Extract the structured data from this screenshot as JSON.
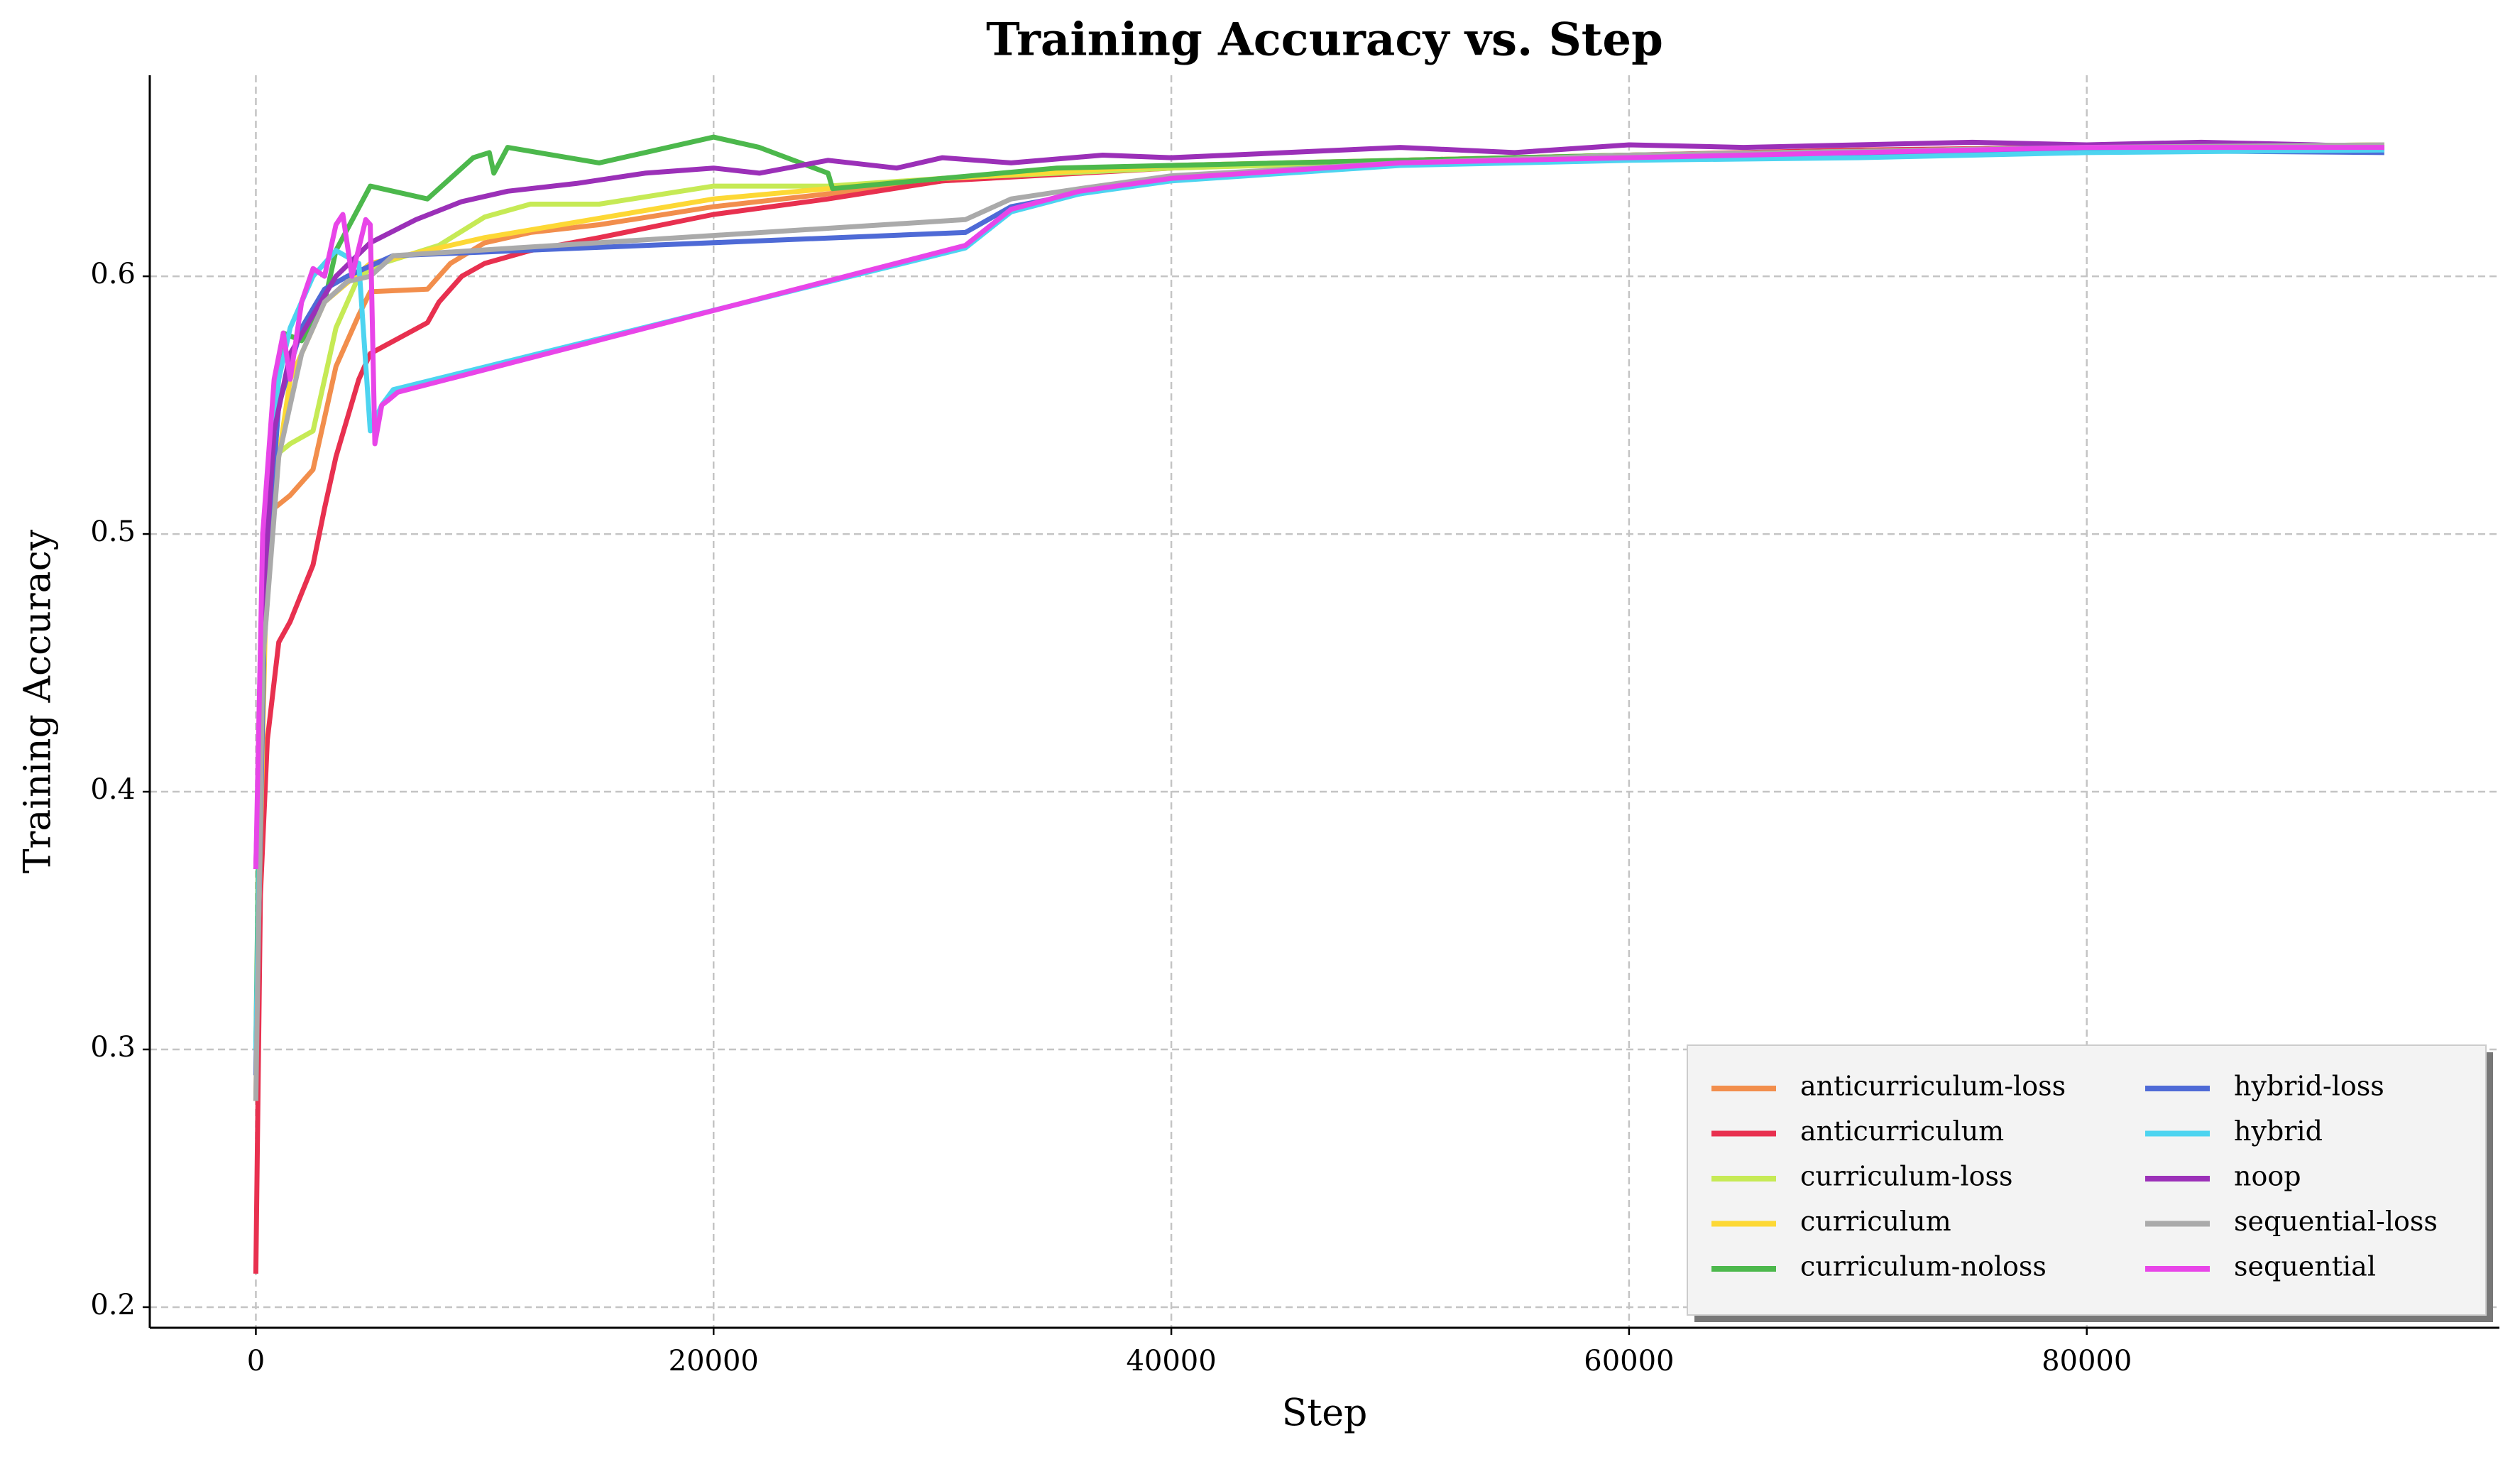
{
  "chart_data": {
    "type": "line",
    "title": "Training Accuracy vs. Step",
    "x_label": "Step",
    "y_label": "Training Accuracy",
    "xlim": [
      -4635,
      98030
    ],
    "ylim": [
      0.192,
      0.678
    ],
    "xticks": [
      0,
      20000,
      40000,
      60000,
      80000
    ],
    "yticks": [
      0.2,
      0.3,
      0.4,
      0.5,
      0.6
    ],
    "grid": true,
    "legend_loc": "lower right",
    "series": [
      {
        "name": "anticurriculum-loss",
        "color": "#f28e4c",
        "x": [
          0,
          300,
          800,
          1500,
          2500,
          3500,
          4500,
          5000,
          7500,
          8500,
          10000,
          12000,
          15000,
          20000,
          25000,
          30000,
          35000,
          40000,
          50000,
          60000,
          70000,
          80000,
          93000
        ],
        "values": [
          0.28,
          0.45,
          0.51,
          0.515,
          0.525,
          0.565,
          0.585,
          0.594,
          0.595,
          0.605,
          0.613,
          0.617,
          0.62,
          0.627,
          0.632,
          0.637,
          0.64,
          0.643,
          0.645,
          0.647,
          0.648,
          0.65,
          0.65
        ]
      },
      {
        "name": "anticurriculum",
        "color": "#e8304f",
        "x": [
          0,
          200,
          500,
          1000,
          1500,
          2500,
          3000,
          3500,
          4500,
          5000,
          7500,
          8000,
          9000,
          10000,
          12000,
          15000,
          20000,
          25000,
          30000,
          40000,
          50000,
          60000,
          70000,
          80000,
          93000
        ],
        "values": [
          0.213,
          0.36,
          0.42,
          0.458,
          0.466,
          0.488,
          0.51,
          0.53,
          0.56,
          0.57,
          0.582,
          0.59,
          0.6,
          0.605,
          0.61,
          0.615,
          0.624,
          0.63,
          0.637,
          0.642,
          0.645,
          0.647,
          0.649,
          0.65,
          0.65
        ]
      },
      {
        "name": "curriculum-loss",
        "color": "#c6ea55",
        "x": [
          0,
          300,
          800,
          1500,
          2500,
          3000,
          3500,
          4500,
          5500,
          8000,
          10000,
          12000,
          15000,
          20000,
          25000,
          30000,
          40000,
          60000,
          80000,
          93000
        ],
        "values": [
          0.29,
          0.46,
          0.53,
          0.535,
          0.54,
          0.56,
          0.58,
          0.6,
          0.605,
          0.612,
          0.623,
          0.628,
          0.628,
          0.635,
          0.635,
          0.638,
          0.642,
          0.647,
          0.65,
          0.651
        ]
      },
      {
        "name": "curriculum",
        "color": "#fdd835",
        "x": [
          0,
          500,
          1500,
          3000,
          5000,
          10000,
          20000,
          30000,
          40000,
          60000,
          80000,
          93000
        ],
        "values": [
          0.3,
          0.5,
          0.56,
          0.59,
          0.605,
          0.615,
          0.63,
          0.638,
          0.643,
          0.647,
          0.65,
          0.651
        ]
      },
      {
        "name": "curriculum-noloss",
        "color": "#4cb84c",
        "x": [
          0,
          300,
          1200,
          2000,
          3000,
          3500,
          5000,
          7500,
          9500,
          10200,
          10400,
          11000,
          15000,
          17000,
          20000,
          22000,
          25000,
          25200,
          30000,
          35000,
          40000,
          50000,
          60000,
          80000,
          93000
        ],
        "values": [
          0.3,
          0.5,
          0.578,
          0.575,
          0.59,
          0.61,
          0.635,
          0.63,
          0.646,
          0.648,
          0.64,
          0.65,
          0.644,
          0.648,
          0.654,
          0.65,
          0.64,
          0.634,
          0.638,
          0.642,
          0.643,
          0.645,
          0.647,
          0.65,
          0.65
        ]
      },
      {
        "name": "hybrid-loss",
        "color": "#4e6ad6",
        "x": [
          0,
          400,
          1000,
          2000,
          3000,
          4000,
          6000,
          31000,
          33000,
          36000,
          40000,
          50000,
          60000,
          80000,
          93000
        ],
        "values": [
          0.29,
          0.48,
          0.55,
          0.58,
          0.595,
          0.6,
          0.608,
          0.617,
          0.627,
          0.632,
          0.638,
          0.644,
          0.646,
          0.649,
          0.648
        ]
      },
      {
        "name": "hybrid",
        "color": "#4dd4f0",
        "x": [
          0,
          400,
          1000,
          1500,
          2500,
          3500,
          4500,
          5000,
          5500,
          6000,
          31000,
          33000,
          36000,
          40000,
          50000,
          60000,
          70000,
          80000,
          93000
        ],
        "values": [
          0.3,
          0.5,
          0.56,
          0.58,
          0.6,
          0.61,
          0.605,
          0.54,
          0.55,
          0.556,
          0.611,
          0.625,
          0.632,
          0.637,
          0.643,
          0.645,
          0.646,
          0.648,
          0.649
        ]
      },
      {
        "name": "noop",
        "color": "#9b30b8",
        "x": [
          0,
          300,
          800,
          1500,
          2500,
          3500,
          5000,
          7000,
          9000,
          11000,
          14000,
          17000,
          20000,
          22000,
          25000,
          28000,
          30000,
          33000,
          37000,
          40000,
          45000,
          50000,
          55000,
          60000,
          65000,
          70000,
          75000,
          80000,
          85000,
          90000,
          93000
        ],
        "values": [
          0.37,
          0.47,
          0.54,
          0.57,
          0.585,
          0.6,
          0.613,
          0.622,
          0.629,
          0.633,
          0.636,
          0.64,
          0.642,
          0.64,
          0.645,
          0.642,
          0.646,
          0.644,
          0.647,
          0.646,
          0.648,
          0.65,
          0.648,
          0.651,
          0.65,
          0.651,
          0.652,
          0.651,
          0.652,
          0.651,
          0.65
        ]
      },
      {
        "name": "sequential-loss",
        "color": "#aaaaaa",
        "x": [
          0,
          300,
          1000,
          2000,
          3000,
          4000,
          5000,
          6000,
          31000,
          33000,
          36000,
          40000,
          50000,
          60000,
          80000,
          93000
        ],
        "values": [
          0.28,
          0.45,
          0.53,
          0.57,
          0.59,
          0.598,
          0.6,
          0.608,
          0.622,
          0.63,
          0.634,
          0.639,
          0.644,
          0.647,
          0.65,
          0.651
        ]
      },
      {
        "name": "sequential",
        "color": "#e845e8",
        "x": [
          0,
          300,
          800,
          1200,
          1500,
          2000,
          2500,
          3000,
          3500,
          3800,
          4200,
          4800,
          5000,
          5200,
          5500,
          5800,
          6200,
          31000,
          33000,
          36000,
          40000,
          50000,
          60000,
          70000,
          80000,
          93000
        ],
        "values": [
          0.37,
          0.5,
          0.56,
          0.578,
          0.56,
          0.59,
          0.603,
          0.6,
          0.62,
          0.624,
          0.6,
          0.622,
          0.62,
          0.535,
          0.55,
          0.552,
          0.555,
          0.612,
          0.626,
          0.633,
          0.638,
          0.644,
          0.646,
          0.648,
          0.65,
          0.65
        ]
      }
    ]
  }
}
